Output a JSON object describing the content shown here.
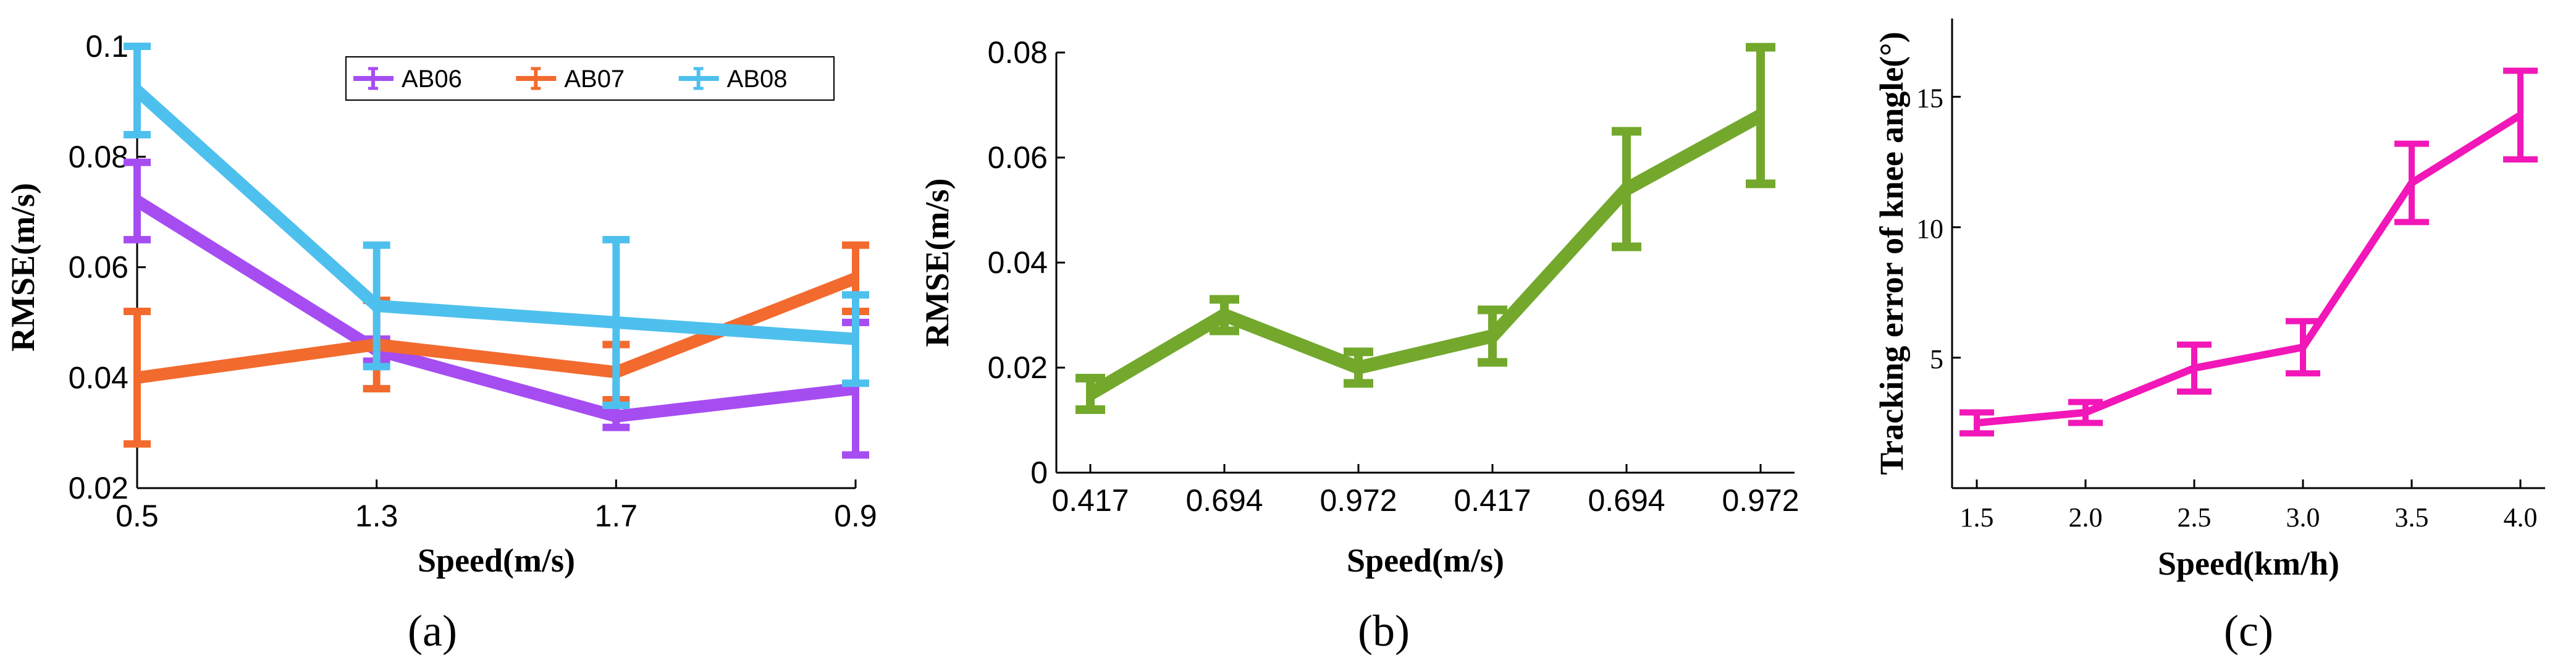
{
  "chart_data": [
    {
      "type": "line",
      "panel_label": "(a)",
      "xlabel": "Speed(m/s)",
      "ylabel": "RMSE(m/s)",
      "categories": [
        "0.5",
        "1.3",
        "1.7",
        "0.9"
      ],
      "ylim": [
        0.02,
        0.1
      ],
      "yticks": [
        "0.02",
        "0.04",
        "0.06",
        "0.08",
        "0.1"
      ],
      "legend_position": "top-right",
      "series": [
        {
          "name": "AB06",
          "color": "#a64df2",
          "values": [
            0.072,
            0.045,
            0.033,
            0.038
          ],
          "errors": [
            0.007,
            0.002,
            0.002,
            0.012
          ]
        },
        {
          "name": "AB07",
          "color": "#f26a2e",
          "values": [
            0.04,
            0.046,
            0.041,
            0.058
          ],
          "errors": [
            0.012,
            0.008,
            0.005,
            0.006
          ]
        },
        {
          "name": "AB08",
          "color": "#4ec0ed",
          "values": [
            0.092,
            0.053,
            0.05,
            0.047
          ],
          "errors": [
            0.008,
            0.011,
            0.015,
            0.008
          ]
        }
      ]
    },
    {
      "type": "line",
      "panel_label": "(b)",
      "xlabel": "Speed(m/s)",
      "ylabel": "RMSE(m/s)",
      "categories": [
        "0.417",
        "0.694",
        "0.972",
        "0.417",
        "0.694",
        "0.972"
      ],
      "ylim": [
        0,
        0.08
      ],
      "yticks": [
        "0",
        "0.02",
        "0.04",
        "0.06",
        "0.08"
      ],
      "series": [
        {
          "color": "#73a82d",
          "values": [
            0.015,
            0.03,
            0.02,
            0.026,
            0.054,
            0.068
          ],
          "errors": [
            0.003,
            0.003,
            0.003,
            0.005,
            0.011,
            0.013
          ]
        }
      ]
    },
    {
      "type": "line",
      "panel_label": "(c)",
      "xlabel": "Speed(km/h)",
      "ylabel": "Tracking error of knee angle(°)",
      "categories": [
        "1.5",
        "2.0",
        "2.5",
        "3.0",
        "3.5",
        "4.0"
      ],
      "ylim": [
        0,
        18
      ],
      "yticks": [
        "5",
        "10",
        "15"
      ],
      "series": [
        {
          "color": "#f217b8",
          "values": [
            2.5,
            2.9,
            4.6,
            5.4,
            11.7,
            14.3
          ],
          "errors": [
            0.4,
            0.4,
            0.9,
            1.0,
            1.5,
            1.7
          ]
        }
      ]
    }
  ]
}
